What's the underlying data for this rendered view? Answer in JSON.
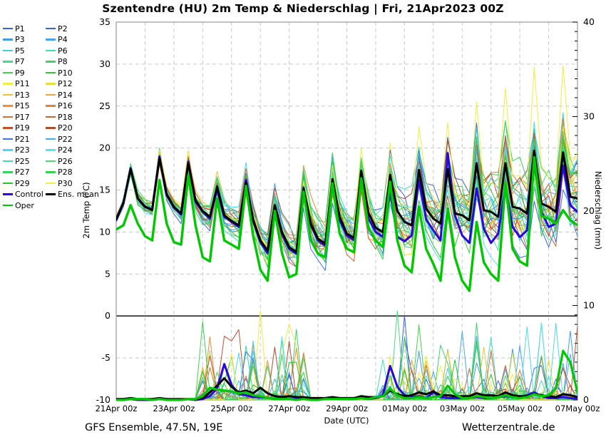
{
  "footer": {
    "left": "GFS Ensemble, 47.5N, 19E",
    "right": "Wetterzentrale.de"
  },
  "chart_data": {
    "type": "line",
    "title": "Szentendre  (HU)  2m Temp & Niederschlag | Fri, 21Apr2023 00Z",
    "x": {
      "label": "Date (UTC)",
      "step_hours": 6,
      "days": 16,
      "tick_labels": [
        "21Apr 00z",
        "23Apr 00z",
        "25Apr 00z",
        "27Apr 00z",
        "29Apr 00z",
        "01May 00z",
        "03May 00z",
        "05May 00z",
        "07May 00z"
      ],
      "gridlines": "daily-dashed"
    },
    "y_left": {
      "label": "2m Temp (°C)",
      "min": -10,
      "max": 35,
      "ticks": [
        -10,
        -5,
        0,
        5,
        10,
        15,
        20,
        25,
        30,
        35
      ],
      "zero_line": "solid-black",
      "gridlines": "dashed-every-5"
    },
    "y_right": {
      "label": "Niederschlag (mm)",
      "min": 0,
      "max": 40,
      "ticks": [
        0,
        10,
        20,
        30,
        40
      ],
      "minor_tick_mm": 1
    },
    "legend": {
      "members": [
        {
          "label": "P1",
          "color": "#3a62dd"
        },
        {
          "label": "P2",
          "color": "#3a62dd"
        },
        {
          "label": "P3",
          "color": "#3f9bec"
        },
        {
          "label": "P4",
          "color": "#44a4ee"
        },
        {
          "label": "P5",
          "color": "#44c8ee"
        },
        {
          "label": "P6",
          "color": "#3cdcc3"
        },
        {
          "label": "P7",
          "color": "#3cdc91"
        },
        {
          "label": "P8",
          "color": "#3cd26e"
        },
        {
          "label": "P9",
          "color": "#46d24b"
        },
        {
          "label": "P10",
          "color": "#32c837"
        },
        {
          "label": "P11",
          "color": "#eeee44"
        },
        {
          "label": "P12",
          "color": "#eedc38"
        },
        {
          "label": "P13",
          "color": "#eec338"
        },
        {
          "label": "P14",
          "color": "#eea438"
        },
        {
          "label": "P15",
          "color": "#ee8f38"
        },
        {
          "label": "P16",
          "color": "#e08038"
        },
        {
          "label": "P17",
          "color": "#dc7232"
        },
        {
          "label": "P18",
          "color": "#d26432"
        },
        {
          "label": "P19",
          "color": "#c35032"
        },
        {
          "label": "P20",
          "color": "#af4b32"
        },
        {
          "label": "P21",
          "color": "#3a74e4"
        },
        {
          "label": "P22",
          "color": "#46aaee"
        },
        {
          "label": "P23",
          "color": "#4fd7ee"
        },
        {
          "label": "P24",
          "color": "#55e6e6"
        },
        {
          "label": "P25",
          "color": "#46dcaa"
        },
        {
          "label": "P26",
          "color": "#46dc78"
        },
        {
          "label": "P27",
          "color": "#3cd25a"
        },
        {
          "label": "P28",
          "color": "#3cce46"
        },
        {
          "label": "P29",
          "color": "#28c828"
        },
        {
          "label": "P30",
          "color": "#eeee44"
        }
      ],
      "control": {
        "label": "Control",
        "color": "#2b07dd"
      },
      "ens_mean": {
        "label": "Ens. mean",
        "color": "#000000"
      },
      "oper": {
        "label": "Oper",
        "color": "#00c800"
      }
    },
    "series": {
      "temp_c_6h": {
        "ens_mean": [
          11.5,
          13.5,
          17.5,
          14.0,
          13.0,
          12.6,
          18.8,
          14.5,
          13.0,
          12.2,
          18.2,
          13.8,
          12.5,
          11.8,
          15.4,
          12.0,
          11.3,
          10.8,
          15.9,
          11.5,
          9.0,
          7.8,
          13.2,
          10.0,
          8.2,
          7.6,
          15.1,
          11.0,
          9.2,
          8.6,
          16.3,
          11.8,
          9.8,
          9.3,
          17.3,
          12.3,
          10.5,
          10.0,
          16.8,
          12.5,
          11.2,
          10.8,
          17.4,
          12.8,
          11.6,
          11.0,
          17.5,
          12.2,
          12.0,
          11.4,
          18.2,
          12.6,
          12.4,
          11.8,
          18.2,
          13.0,
          12.8,
          12.2,
          19.7,
          13.4,
          13.0,
          12.4,
          19.5,
          14.2,
          14.0
        ],
        "control": [
          11.4,
          13.4,
          17.6,
          14.0,
          13.0,
          12.7,
          19.0,
          14.4,
          12.9,
          12.1,
          18.4,
          13.6,
          12.4,
          11.6,
          15.2,
          11.8,
          11.2,
          10.6,
          16.2,
          11.3,
          8.8,
          7.5,
          13.0,
          9.8,
          8.0,
          7.4,
          15.3,
          10.8,
          9.0,
          8.4,
          16.0,
          11.4,
          9.6,
          9.0,
          16.6,
          11.6,
          10.0,
          9.4,
          14.8,
          9.4,
          8.9,
          9.6,
          16.2,
          11.5,
          10.2,
          9.0,
          19.4,
          12.0,
          9.6,
          8.7,
          15.2,
          10.4,
          8.7,
          9.8,
          15.3,
          10.6,
          9.4,
          10.2,
          18.3,
          12.4,
          10.6,
          11.0,
          17.9,
          13.2,
          12.4
        ],
        "oper": [
          10.3,
          10.8,
          13.2,
          11.0,
          9.5,
          9.0,
          16.2,
          11.0,
          8.8,
          8.5,
          16.8,
          10.8,
          7.0,
          6.5,
          14.0,
          9.0,
          8.5,
          8.0,
          15.5,
          9.5,
          5.5,
          4.2,
          12.5,
          7.5,
          4.6,
          5.0,
          14.8,
          9.0,
          7.4,
          7.0,
          15.8,
          9.8,
          8.0,
          7.6,
          16.4,
          10.5,
          9.0,
          8.2,
          16.0,
          9.0,
          6.0,
          5.2,
          13.0,
          8.0,
          6.2,
          4.2,
          12.8,
          7.0,
          4.2,
          3.0,
          11.2,
          6.4,
          5.0,
          4.2,
          15.9,
          8.0,
          6.5,
          6.0,
          18.9,
          11.9,
          11.6,
          11.0,
          12.6,
          11.4,
          10.8
        ]
      },
      "precip_mm_6h": {
        "ens_mean": [
          0.1,
          0.1,
          0.2,
          0.1,
          0.1,
          0.1,
          0.2,
          0.1,
          0.1,
          0.1,
          0.1,
          0.1,
          0.2,
          0.8,
          1.5,
          2.3,
          1.4,
          0.8,
          1.0,
          0.7,
          1.3,
          0.7,
          0.4,
          0.3,
          0.4,
          0.3,
          0.3,
          0.2,
          0.2,
          0.2,
          0.3,
          0.2,
          0.2,
          0.2,
          0.4,
          0.3,
          0.3,
          0.4,
          1.0,
          0.6,
          0.4,
          0.5,
          0.8,
          0.6,
          0.9,
          0.5,
          0.5,
          0.4,
          0.4,
          0.4,
          0.7,
          0.5,
          0.5,
          0.4,
          0.8,
          0.5,
          0.4,
          0.4,
          0.6,
          0.5,
          0.4,
          0.3,
          0.6,
          0.5,
          0.3
        ],
        "control": [
          0,
          0,
          0.1,
          0,
          0,
          0,
          0.1,
          0.1,
          0,
          0,
          0.1,
          0,
          0.1,
          0.4,
          1.2,
          3.8,
          1.6,
          0.6,
          0.5,
          0.3,
          0.3,
          0.2,
          0.1,
          0.1,
          0.1,
          0.1,
          0.1,
          0.1,
          0.1,
          0.1,
          0.2,
          0.1,
          0.1,
          0.1,
          0.2,
          0.1,
          0.2,
          0.5,
          3.6,
          1.4,
          0.5,
          0.3,
          0.4,
          0.2,
          0.8,
          0.3,
          0.2,
          0.2,
          0.2,
          0.2,
          0.3,
          0.2,
          0.2,
          0.3,
          0.4,
          0.3,
          0.3,
          0.5,
          0.8,
          0.4,
          0.2,
          0.2,
          0.3,
          0.2,
          0.1
        ],
        "oper": [
          0,
          0,
          0.1,
          0.1,
          0.1,
          0,
          0.1,
          0,
          0,
          0,
          0.1,
          0.1,
          0.4,
          1.3,
          1.1,
          1.0,
          0.9,
          0.7,
          0.8,
          0.5,
          0.4,
          0.2,
          0.1,
          0.1,
          0.1,
          0,
          0.1,
          0,
          0,
          0.1,
          0.1,
          0.1,
          0.1,
          0.1,
          0.2,
          0.1,
          0.3,
          0.4,
          1.2,
          0.5,
          0.2,
          0.2,
          0.3,
          0.2,
          0.3,
          0.4,
          1.5,
          0.6,
          0.2,
          0.2,
          0.4,
          0.3,
          0.2,
          0.3,
          0.5,
          0.3,
          0.2,
          0.3,
          0.6,
          0.4,
          0.5,
          1.2,
          5.2,
          4.0,
          0.8
        ]
      },
      "ensemble_appearance": {
        "note": "30 thin member traces; spread grows with lead time",
        "temp_spread_start_c": 0.6,
        "temp_spread_end_c": 5.1,
        "warm_outlier_member": "P30",
        "warm_outlier_peak_c": 31,
        "precip_windows": [
          {
            "from_day": 3.0,
            "to_day": 6.5,
            "max_mm": 10.3
          },
          {
            "from_day": 9.25,
            "to_day": 16.0,
            "max_mm": 10.5
          }
        ]
      }
    },
    "style": {
      "grid_color": "#c8c8c8",
      "frame_color": "#999999",
      "zero_line_color": "#000000",
      "background": "#ffffff"
    }
  },
  "footer_note_positions": "left model info, right watermark"
}
